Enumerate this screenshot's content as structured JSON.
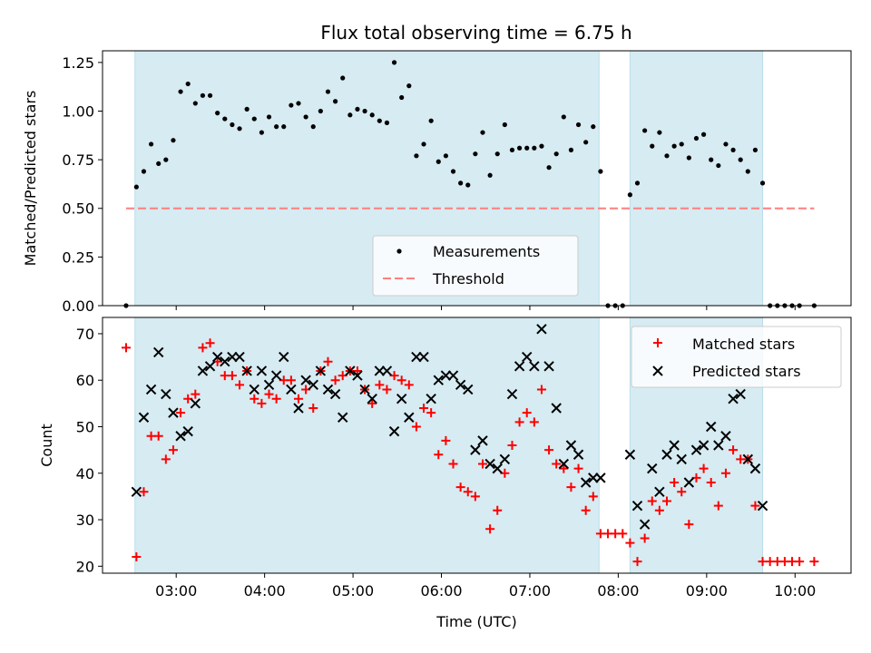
{
  "chart_data": [
    {
      "type": "scatter",
      "title": "Flux total observing time = 6.75 h",
      "xlabel": "",
      "ylabel": "Matched/Predicted stars",
      "xlim": [
        "02:10",
        "10:38"
      ],
      "ylim": [
        0,
        1.31
      ],
      "yticks": [
        "0.00",
        "0.25",
        "0.50",
        "0.75",
        "1.00",
        "1.25"
      ],
      "grid": false,
      "legend_position": "lower-center",
      "colors": {
        "measurements": "#000000",
        "threshold": "#ff7f7f",
        "shade": "#add8e6"
      },
      "shaded_intervals": [
        [
          "02:32",
          "07:47"
        ],
        [
          "08:08",
          "09:38"
        ]
      ],
      "series": [
        {
          "name": "Measurements",
          "marker": "dot",
          "x": [
            "02:26",
            "02:33",
            "02:38",
            "02:43",
            "02:48",
            "02:53",
            "02:58",
            "03:03",
            "03:08",
            "03:13",
            "03:18",
            "03:23",
            "03:28",
            "03:33",
            "03:38",
            "03:43",
            "03:48",
            "03:53",
            "03:58",
            "04:03",
            "04:08",
            "04:13",
            "04:18",
            "04:23",
            "04:28",
            "04:33",
            "04:38",
            "04:43",
            "04:48",
            "04:53",
            "04:58",
            "05:03",
            "05:08",
            "05:13",
            "05:18",
            "05:23",
            "05:28",
            "05:33",
            "05:38",
            "05:43",
            "05:48",
            "05:53",
            "05:58",
            "06:03",
            "06:08",
            "06:13",
            "06:18",
            "06:23",
            "06:28",
            "06:33",
            "06:38",
            "06:43",
            "06:48",
            "06:53",
            "06:58",
            "07:03",
            "07:08",
            "07:13",
            "07:18",
            "07:23",
            "07:28",
            "07:33",
            "07:38",
            "07:43",
            "07:48",
            "07:53",
            "07:58",
            "08:03",
            "08:08",
            "08:13",
            "08:18",
            "08:23",
            "08:28",
            "08:33",
            "08:38",
            "08:43",
            "08:48",
            "08:53",
            "08:58",
            "09:03",
            "09:08",
            "09:13",
            "09:18",
            "09:23",
            "09:28",
            "09:33",
            "09:38",
            "09:43",
            "09:48",
            "09:53",
            "09:58",
            "10:03",
            "10:13"
          ],
          "y": [
            0.0,
            0.61,
            0.69,
            0.83,
            0.73,
            0.75,
            0.85,
            1.1,
            1.14,
            1.04,
            1.08,
            1.08,
            0.99,
            0.96,
            0.93,
            0.91,
            1.01,
            0.96,
            0.89,
            0.97,
            0.92,
            0.92,
            1.03,
            1.04,
            0.97,
            0.92,
            1.0,
            1.1,
            1.05,
            1.17,
            0.98,
            1.01,
            1.0,
            0.98,
            0.95,
            0.94,
            1.25,
            1.07,
            1.13,
            0.77,
            0.83,
            0.95,
            0.74,
            0.77,
            0.69,
            0.63,
            0.62,
            0.78,
            0.89,
            0.67,
            0.78,
            0.93,
            0.8,
            0.81,
            0.81,
            0.81,
            0.82,
            0.71,
            0.78,
            0.97,
            0.8,
            0.93,
            0.84,
            0.92,
            0.69,
            0.0,
            0.0,
            0.0,
            0.57,
            0.63,
            0.9,
            0.82,
            0.89,
            0.77,
            0.82,
            0.83,
            0.76,
            0.86,
            0.88,
            0.75,
            0.72,
            0.83,
            0.8,
            0.75,
            0.69,
            0.8,
            0.63,
            0.0,
            0.0,
            0.0,
            0.0,
            0.0,
            0.0
          ]
        },
        {
          "name": "Threshold",
          "style": "dashed-line",
          "x": [
            "02:26",
            "10:13"
          ],
          "y": [
            0.5,
            0.5
          ]
        }
      ]
    },
    {
      "type": "scatter",
      "xlabel": "Time (UTC)",
      "ylabel": "Count",
      "xlim": [
        "02:10",
        "10:38"
      ],
      "ylim": [
        18.5,
        73.5
      ],
      "xticks": [
        "03:00",
        "04:00",
        "05:00",
        "06:00",
        "07:00",
        "08:00",
        "09:00",
        "10:00"
      ],
      "yticks": [
        "20",
        "30",
        "40",
        "50",
        "60",
        "70"
      ],
      "grid": false,
      "legend_position": "upper-right",
      "colors": {
        "matched": "#ff0000",
        "predicted": "#000000",
        "shade": "#add8e6"
      },
      "shaded_intervals": [
        [
          "02:32",
          "07:47"
        ],
        [
          "08:08",
          "09:38"
        ]
      ],
      "series": [
        {
          "name": "Matched stars",
          "marker": "plus",
          "x": [
            "02:26",
            "02:33",
            "02:38",
            "02:43",
            "02:48",
            "02:53",
            "02:58",
            "03:03",
            "03:08",
            "03:13",
            "03:18",
            "03:23",
            "03:28",
            "03:33",
            "03:38",
            "03:43",
            "03:48",
            "03:53",
            "03:58",
            "04:03",
            "04:08",
            "04:13",
            "04:18",
            "04:23",
            "04:28",
            "04:33",
            "04:38",
            "04:43",
            "04:48",
            "04:53",
            "04:58",
            "05:03",
            "05:08",
            "05:13",
            "05:18",
            "05:23",
            "05:28",
            "05:33",
            "05:38",
            "05:43",
            "05:48",
            "05:53",
            "05:58",
            "06:03",
            "06:08",
            "06:13",
            "06:18",
            "06:23",
            "06:28",
            "06:33",
            "06:38",
            "06:43",
            "06:48",
            "06:53",
            "06:58",
            "07:03",
            "07:08",
            "07:13",
            "07:18",
            "07:23",
            "07:28",
            "07:33",
            "07:38",
            "07:43",
            "07:48",
            "07:53",
            "07:58",
            "08:03",
            "08:08",
            "08:13",
            "08:18",
            "08:23",
            "08:28",
            "08:33",
            "08:38",
            "08:43",
            "08:48",
            "08:53",
            "08:58",
            "09:03",
            "09:08",
            "09:13",
            "09:18",
            "09:23",
            "09:28",
            "09:33",
            "09:38",
            "09:43",
            "09:48",
            "09:53",
            "09:58",
            "10:03",
            "10:13"
          ],
          "y": [
            67,
            22,
            36,
            48,
            48,
            43,
            45,
            53,
            56,
            57,
            67,
            68,
            64,
            61,
            61,
            59,
            62,
            56,
            55,
            57,
            56,
            60,
            60,
            56,
            58,
            54,
            62,
            64,
            60,
            61,
            62,
            62,
            58,
            55,
            59,
            58,
            61,
            60,
            59,
            50,
            54,
            53,
            44,
            47,
            42,
            37,
            36,
            35,
            42,
            28,
            32,
            40,
            46,
            51,
            53,
            51,
            58,
            45,
            42,
            41,
            37,
            41,
            32,
            35,
            27,
            27,
            27,
            27,
            25,
            21,
            26,
            34,
            32,
            34,
            38,
            36,
            29,
            39,
            41,
            38,
            33,
            40,
            45,
            43,
            43,
            33,
            21,
            21,
            21,
            21,
            21,
            21,
            21
          ]
        },
        {
          "name": "Predicted stars",
          "marker": "x",
          "x": [
            "02:33",
            "02:38",
            "02:43",
            "02:48",
            "02:53",
            "02:58",
            "03:03",
            "03:08",
            "03:13",
            "03:18",
            "03:23",
            "03:28",
            "03:33",
            "03:38",
            "03:43",
            "03:48",
            "03:53",
            "03:58",
            "04:03",
            "04:08",
            "04:13",
            "04:18",
            "04:23",
            "04:28",
            "04:33",
            "04:38",
            "04:43",
            "04:48",
            "04:53",
            "04:58",
            "05:03",
            "05:08",
            "05:13",
            "05:18",
            "05:23",
            "05:28",
            "05:33",
            "05:38",
            "05:43",
            "05:48",
            "05:53",
            "05:58",
            "06:03",
            "06:08",
            "06:13",
            "06:18",
            "06:23",
            "06:28",
            "06:33",
            "06:38",
            "06:43",
            "06:48",
            "06:53",
            "06:58",
            "07:03",
            "07:08",
            "07:13",
            "07:18",
            "07:23",
            "07:28",
            "07:33",
            "07:38",
            "07:43",
            "07:48",
            "08:08",
            "08:13",
            "08:18",
            "08:23",
            "08:28",
            "08:33",
            "08:38",
            "08:43",
            "08:48",
            "08:53",
            "08:58",
            "09:03",
            "09:08",
            "09:13",
            "09:18",
            "09:23",
            "09:28",
            "09:33",
            "09:38"
          ],
          "y": [
            36,
            52,
            58,
            66,
            57,
            53,
            48,
            49,
            55,
            62,
            63,
            65,
            64,
            65,
            65,
            62,
            58,
            62,
            59,
            61,
            65,
            58,
            54,
            60,
            59,
            62,
            58,
            57,
            52,
            62,
            61,
            58,
            56,
            62,
            62,
            49,
            56,
            52,
            65,
            65,
            56,
            60,
            61,
            61,
            59,
            58,
            45,
            47,
            42,
            41,
            43,
            57,
            63,
            65,
            63,
            71,
            63,
            54,
            42,
            46,
            44,
            38,
            39,
            39,
            44,
            33,
            29,
            41,
            36,
            44,
            46,
            43,
            38,
            45,
            46,
            50,
            46,
            48,
            56,
            57,
            43,
            41,
            33
          ]
        }
      ]
    }
  ]
}
